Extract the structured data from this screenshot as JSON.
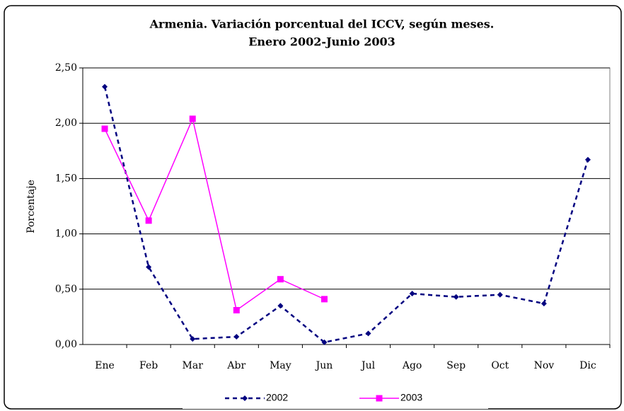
{
  "chart_data": {
    "type": "line",
    "title": "Armenia. Variación porcentual del ICCV, según meses.",
    "subtitle": "Enero 2002-Junio 2003",
    "y_label": "Porcentaje",
    "categories": [
      "Ene",
      "Feb",
      "Mar",
      "Abr",
      "May",
      "Jun",
      "Jul",
      "Ago",
      "Sep",
      "Oct",
      "Nov",
      "Dic"
    ],
    "series": [
      {
        "name": "2002",
        "color": "#000080",
        "line_style": "dashed",
        "marker": "diamond",
        "values": [
          2.33,
          0.7,
          0.05,
          0.07,
          0.35,
          0.02,
          0.1,
          0.46,
          0.43,
          0.45,
          0.37,
          1.67
        ]
      },
      {
        "name": "2003",
        "color": "#ff00ff",
        "line_style": "solid",
        "marker": "square",
        "values": [
          1.95,
          1.12,
          2.04,
          0.31,
          0.59,
          0.41,
          null,
          null,
          null,
          null,
          null,
          null
        ]
      }
    ],
    "ylim": [
      0,
      2.5
    ],
    "yticks": [
      {
        "value": 0,
        "label": "0,00"
      },
      {
        "value": 0.5,
        "label": "0,50"
      },
      {
        "value": 1,
        "label": "1,00"
      },
      {
        "value": 1.5,
        "label": "1,50"
      },
      {
        "value": 2,
        "label": "2,00"
      },
      {
        "value": 2.5,
        "label": "2,50"
      }
    ],
    "grid": true,
    "legend": "bottom"
  }
}
